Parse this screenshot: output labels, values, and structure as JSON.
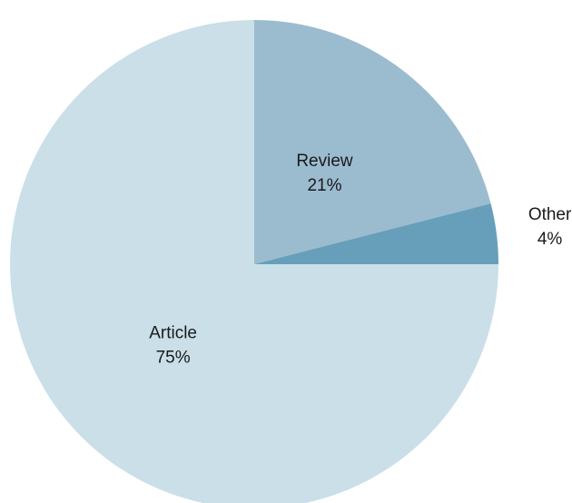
{
  "chart_data": {
    "type": "pie",
    "categories": [
      "Review",
      "Other",
      "Article"
    ],
    "values": [
      21,
      4,
      75
    ],
    "value_labels": [
      "21%",
      "4%",
      "75%"
    ],
    "colors": [
      "#9bbccf",
      "#679fba",
      "#cadfe8"
    ]
  }
}
